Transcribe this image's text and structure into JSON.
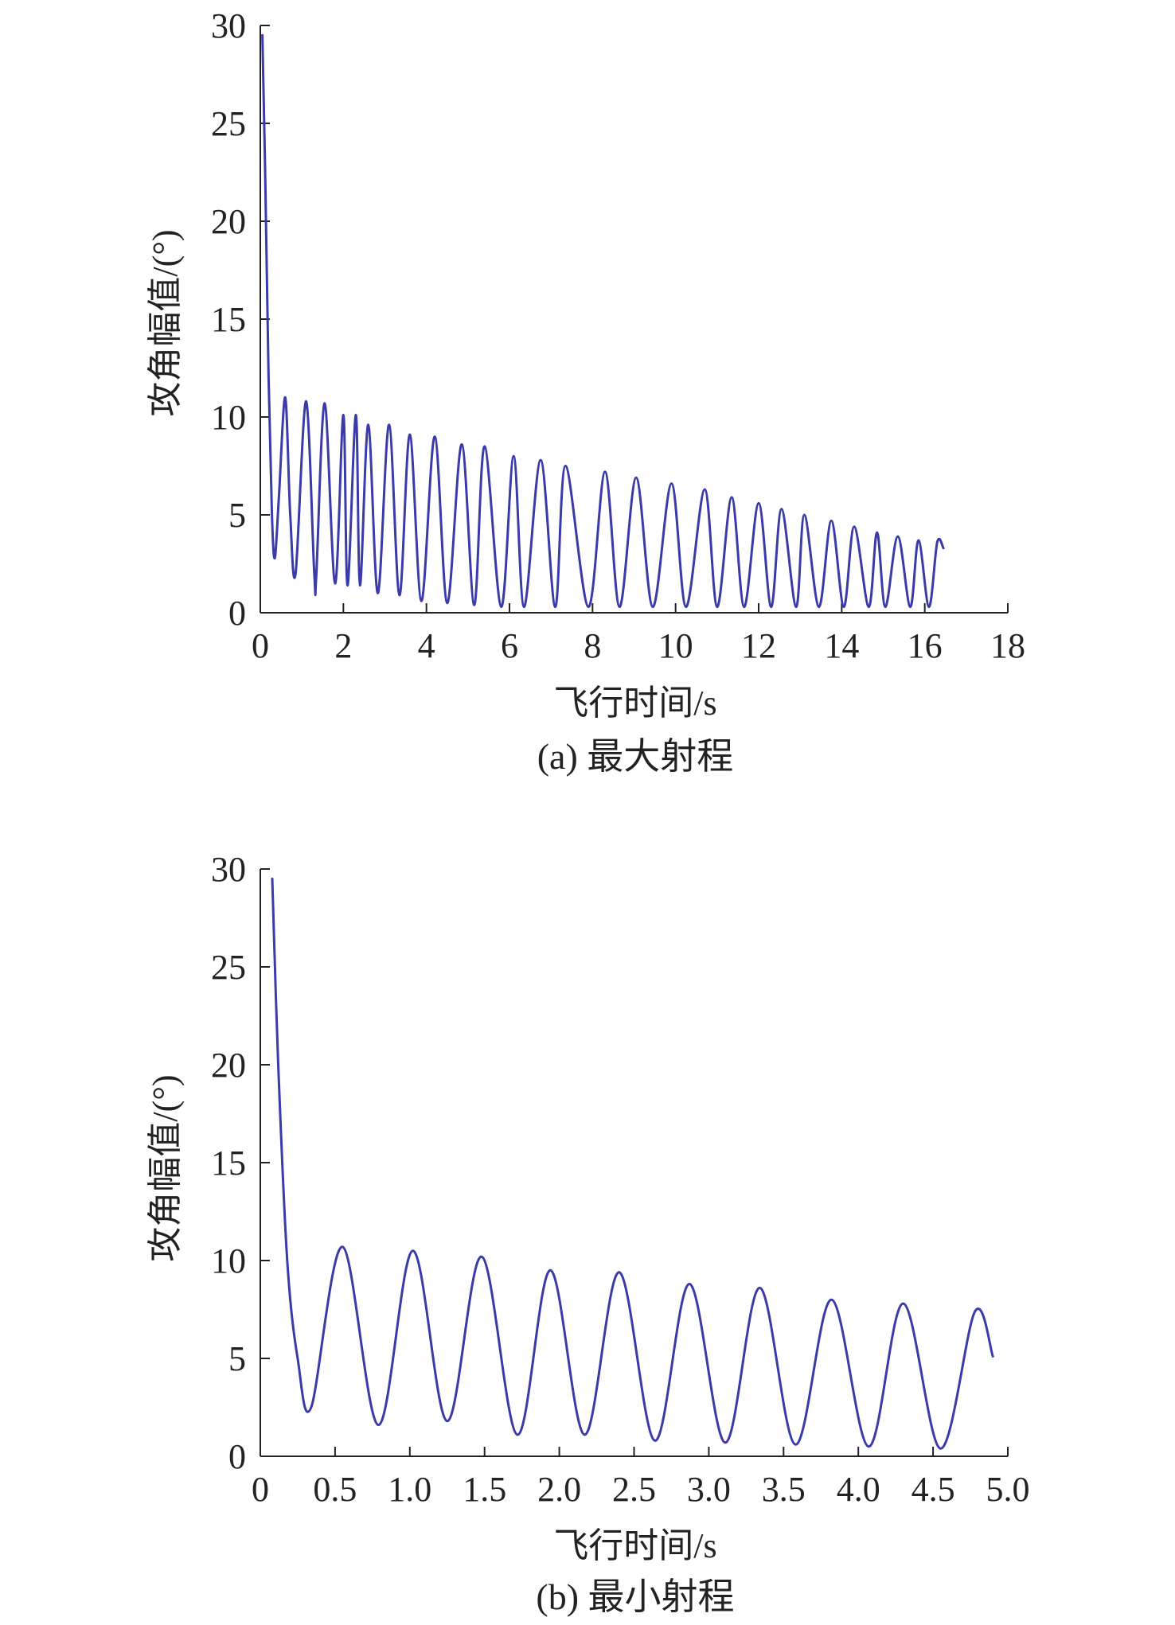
{
  "chart_data": [
    {
      "type": "line",
      "caption": "(a) 最大射程",
      "xlabel": "飞行时间/s",
      "ylabel": "攻角幅值/(°)",
      "xlim": [
        0,
        18
      ],
      "ylim": [
        0,
        30
      ],
      "xticks": [
        "0",
        "2",
        "4",
        "6",
        "8",
        "10",
        "12",
        "14",
        "16",
        "18"
      ],
      "yticks": [
        "0",
        "5",
        "10",
        "15",
        "20",
        "25",
        "30"
      ],
      "grid": false,
      "series": [
        {
          "color": "#3a3aa8",
          "x": [
            0.05,
            0.12,
            0.2,
            0.28,
            0.35,
            0.45,
            0.6,
            0.72,
            0.85,
            1.1,
            1.3,
            1.35,
            1.55,
            1.8,
            2.0,
            2.1,
            2.3,
            2.4,
            2.6,
            2.83,
            3.1,
            3.35,
            3.6,
            3.88,
            4.2,
            4.5,
            4.85,
            5.15,
            5.4,
            5.8,
            6.1,
            6.35,
            6.75,
            7.1,
            7.35,
            7.9,
            8.3,
            8.65,
            9.05,
            9.45,
            9.9,
            10.25,
            10.7,
            11.0,
            11.35,
            11.65,
            12.0,
            12.3,
            12.55,
            12.9,
            13.1,
            13.45,
            13.75,
            14.05,
            14.3,
            14.65,
            14.85,
            15.05,
            15.35,
            15.65,
            15.85,
            16.1,
            16.3,
            16.45
          ],
          "y": [
            29.5,
            22,
            12,
            5,
            2.8,
            6,
            11,
            5,
            2.0,
            10.8,
            2.0,
            2.0,
            10.7,
            1.5,
            10.1,
            1.4,
            10.1,
            1.4,
            9.6,
            1.0,
            9.6,
            0.9,
            9.1,
            0.6,
            9.0,
            0.5,
            8.6,
            0.4,
            8.5,
            0.3,
            8.0,
            0.3,
            7.8,
            0.3,
            7.5,
            0.3,
            7.2,
            0.3,
            6.9,
            0.3,
            6.6,
            0.3,
            6.3,
            0.3,
            5.9,
            0.3,
            5.6,
            0.3,
            5.3,
            0.3,
            5.0,
            0.3,
            4.7,
            0.3,
            4.4,
            0.3,
            4.1,
            0.3,
            3.9,
            0.3,
            3.7,
            0.3,
            3.6,
            3.3
          ]
        }
      ]
    },
    {
      "type": "line",
      "caption": "(b) 最小射程",
      "xlabel": "飞行时间/s",
      "ylabel": "攻角幅值/(°)",
      "xlim": [
        0,
        5.0
      ],
      "ylim": [
        0,
        30
      ],
      "xticks": [
        "0",
        "0.5",
        "1.0",
        "1.5",
        "2.0",
        "2.5",
        "3.0",
        "3.5",
        "4.0",
        "4.5",
        "5.0"
      ],
      "yticks": [
        "0",
        "5",
        "10",
        "15",
        "20",
        "25",
        "30"
      ],
      "grid": false,
      "series": [
        {
          "color": "#3a3aa8",
          "x": [
            0.08,
            0.12,
            0.18,
            0.25,
            0.34,
            0.55,
            0.79,
            1.02,
            1.25,
            1.48,
            1.72,
            1.94,
            2.17,
            2.4,
            2.64,
            2.87,
            3.11,
            3.34,
            3.58,
            3.82,
            4.07,
            4.3,
            4.55,
            4.78,
            4.9
          ],
          "y": [
            29.5,
            20,
            10,
            5,
            2.5,
            10.7,
            1.6,
            10.5,
            1.8,
            10.2,
            1.1,
            9.5,
            1.1,
            9.4,
            0.8,
            8.8,
            0.7,
            8.6,
            0.6,
            8.0,
            0.5,
            7.8,
            0.4,
            7.4,
            5.1
          ]
        }
      ]
    }
  ]
}
